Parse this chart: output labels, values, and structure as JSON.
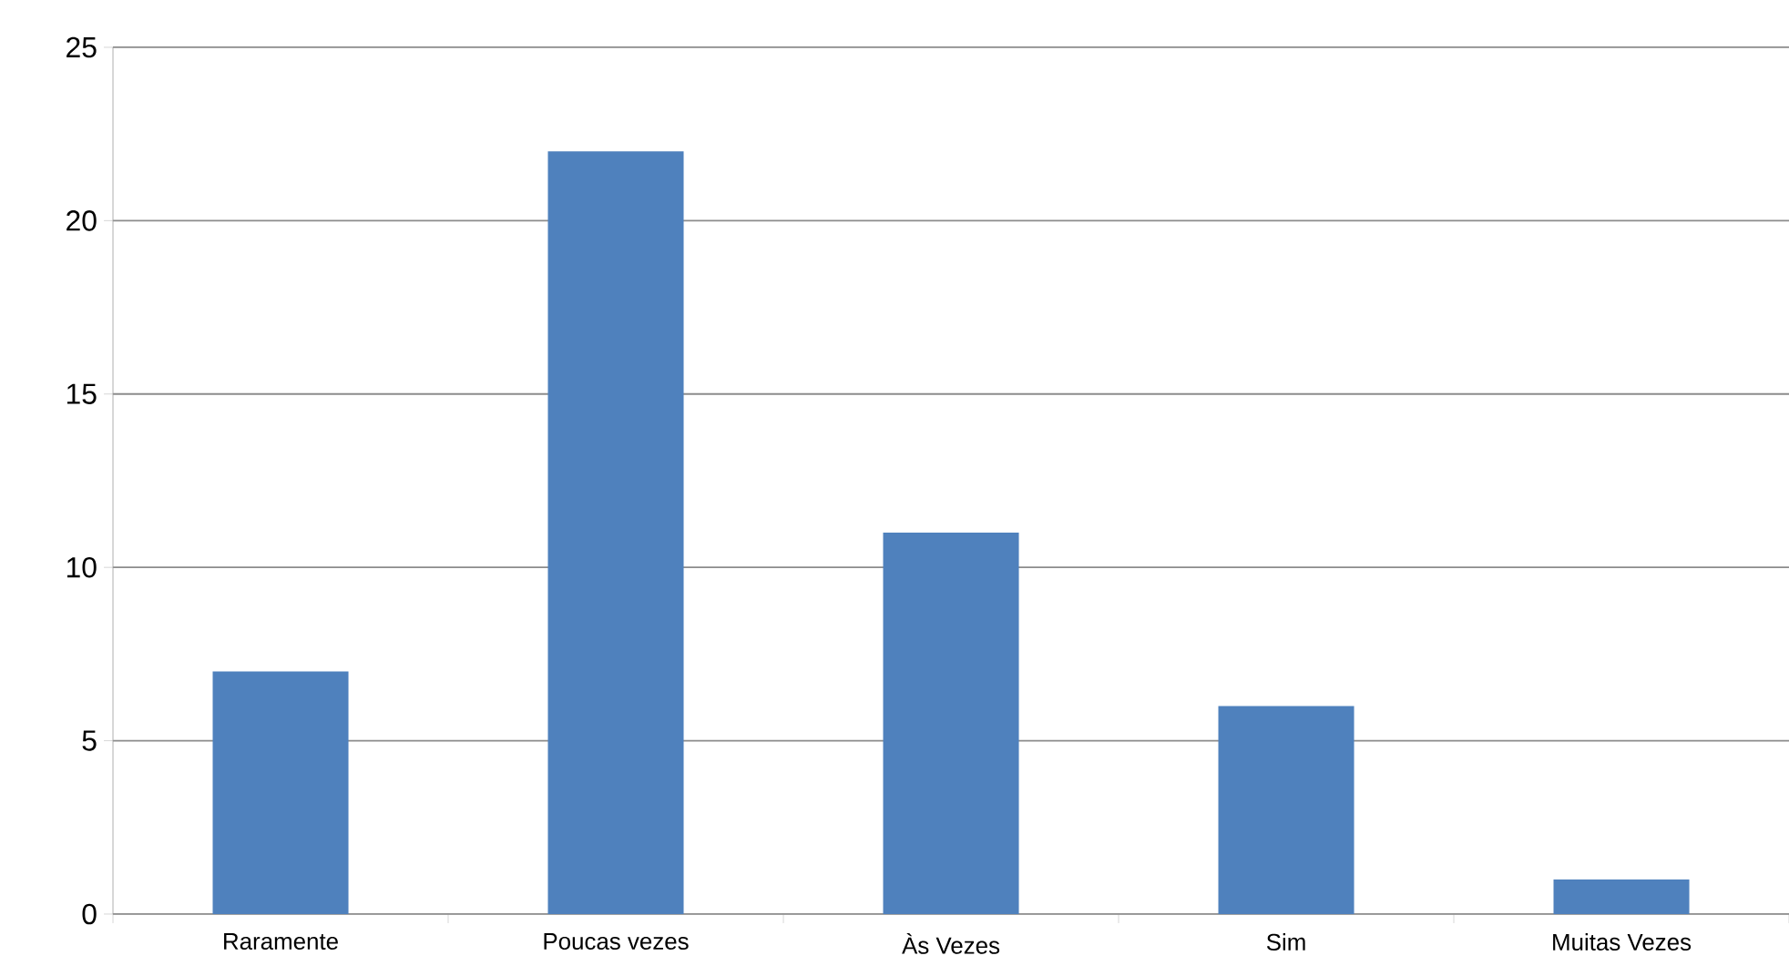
{
  "chart_data": {
    "type": "bar",
    "categories": [
      "Raramente",
      "Poucas vezes",
      "Às Vezes",
      "Sim",
      "Muitas Vezes"
    ],
    "values": [
      7,
      22,
      11,
      6,
      1
    ],
    "color": "#4f81bd",
    "ylim": [
      0,
      25
    ],
    "yticks": [
      0,
      5,
      10,
      15,
      20,
      25
    ],
    "grid": "y"
  }
}
